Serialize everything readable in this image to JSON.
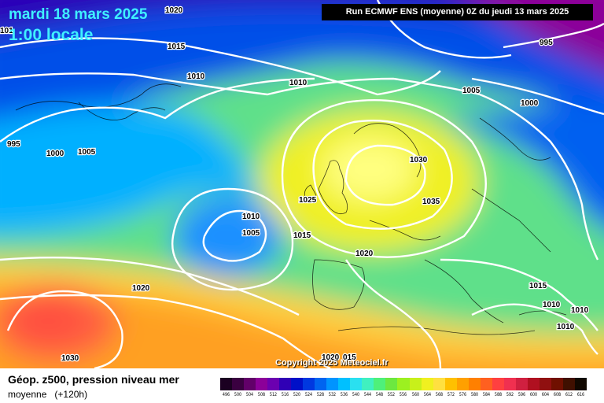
{
  "header": {
    "date": "mardi 18 mars 2025",
    "time": "1:00 locale",
    "run": "Run ECMWF ENS (moyenne) 0Z du jeudi 13 mars 2025"
  },
  "footer": {
    "title": "Géop. z500, pression niveau mer",
    "subtitle": "moyenne",
    "lead": "(+120h)",
    "copyright": "Copyright 2025 Meteociel.fr"
  },
  "scale": {
    "labels": [
      "496",
      "500",
      "504",
      "508",
      "512",
      "516",
      "520",
      "524",
      "528",
      "532",
      "536",
      "540",
      "544",
      "548",
      "552",
      "556",
      "560",
      "564",
      "568",
      "572",
      "576",
      "580",
      "584",
      "588",
      "592",
      "596",
      "600",
      "604",
      "608",
      "612",
      "616"
    ],
    "colors": [
      "#1b0021",
      "#3a0040",
      "#620069",
      "#8c0099",
      "#6b00b0",
      "#3000b5",
      "#0010c8",
      "#0038e0",
      "#0064f0",
      "#0094ff",
      "#00c0ff",
      "#2ae0f0",
      "#40f0c0",
      "#4ef07a",
      "#6ce840",
      "#9cf020",
      "#c8f01a",
      "#f0f020",
      "#ffe040",
      "#ffc000",
      "#ffa000",
      "#ff8000",
      "#ff6020",
      "#ff4040",
      "#f03050",
      "#d02040",
      "#b01020",
      "#901010",
      "#701000",
      "#401000",
      "#100800"
    ]
  },
  "isobar_labels": [
    {
      "id": "l1020a",
      "text": "1020"
    },
    {
      "id": "l1015a",
      "text": "1015"
    },
    {
      "id": "l1010a",
      "text": "1010"
    },
    {
      "id": "l1010b",
      "text": "1010"
    },
    {
      "id": "l995a",
      "text": "995"
    },
    {
      "id": "l1005a",
      "text": "1005"
    },
    {
      "id": "l1000a",
      "text": "1000"
    },
    {
      "id": "l995b",
      "text": "995"
    },
    {
      "id": "l1000b",
      "text": "1000"
    },
    {
      "id": "l1005b",
      "text": "1005"
    },
    {
      "id": "l1030a",
      "text": "1030"
    },
    {
      "id": "l1025a",
      "text": "1025"
    },
    {
      "id": "l1035a",
      "text": "1035"
    },
    {
      "id": "l1010c",
      "text": "1010"
    },
    {
      "id": "l1005c",
      "text": "1005"
    },
    {
      "id": "l1015b",
      "text": "1015"
    },
    {
      "id": "l1020b",
      "text": "1020"
    },
    {
      "id": "l1020c",
      "text": "1020"
    },
    {
      "id": "l1015c",
      "text": "1015"
    },
    {
      "id": "l1010d",
      "text": "1010"
    },
    {
      "id": "l1010e",
      "text": "1010"
    },
    {
      "id": "l1010f",
      "text": "1010"
    },
    {
      "id": "l1030b",
      "text": "1030"
    },
    {
      "id": "l1020d",
      "text": "1020"
    },
    {
      "id": "l1015d",
      "text": "015"
    },
    {
      "id": "l101",
      "text": "101"
    }
  ]
}
